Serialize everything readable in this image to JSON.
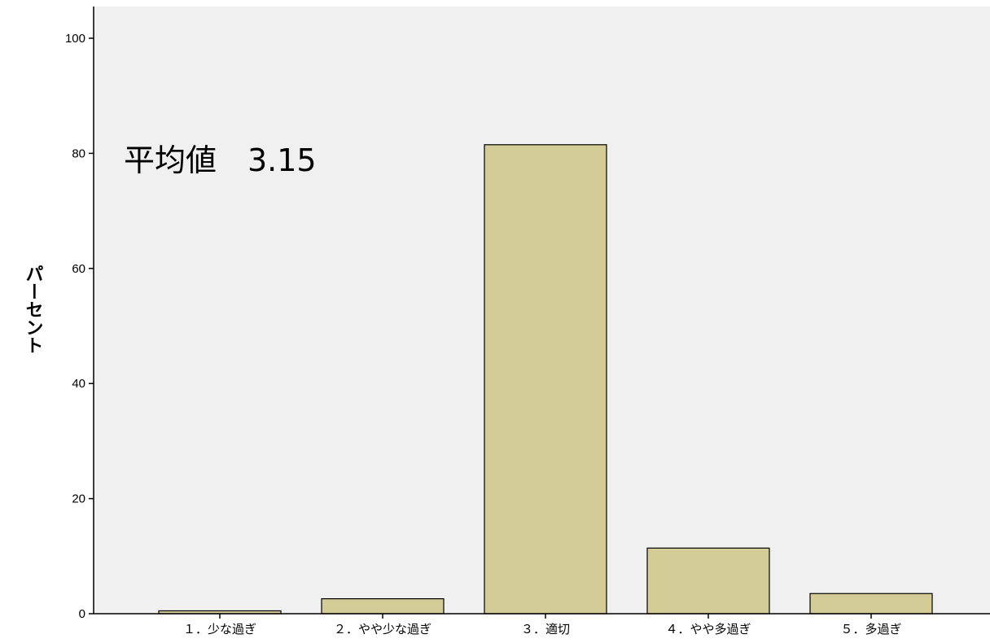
{
  "chart_data": {
    "type": "bar",
    "categories": [
      "１．少な過ぎ",
      "２．やや少な過ぎ",
      "３．適切",
      "４．やや多過ぎ",
      "５．多過ぎ"
    ],
    "values": [
      0.5,
      2.6,
      81.5,
      11.4,
      3.5
    ],
    "ylabel": "パーセント",
    "xlabel": "",
    "title": "",
    "ylim": [
      0,
      100
    ],
    "yticks": [
      0,
      20,
      40,
      60,
      80,
      100
    ],
    "grid": false,
    "legend": "none",
    "annotation": "平均値　3.15",
    "colors": {
      "bar": "#d4cc96",
      "bar_stroke": "#000000",
      "plot_bg": "#f0f0f0"
    }
  }
}
